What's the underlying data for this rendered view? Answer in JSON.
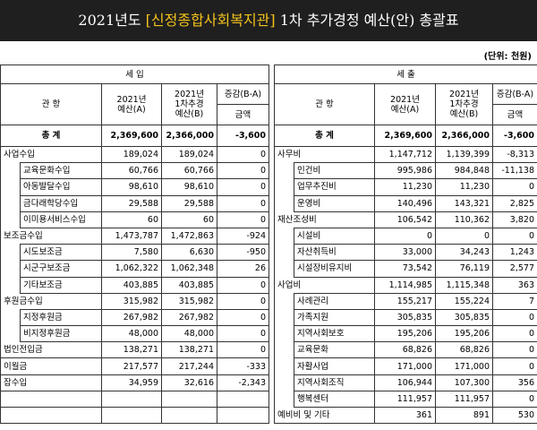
{
  "header": {
    "title_parts": [
      "2021년도 ",
      "[신정종합사회복지관]",
      " 1차 추가경정 예산(안) 총괄표"
    ],
    "unit": "(단위: 천원)"
  },
  "table": {
    "sides": [
      {
        "heading": "세 입",
        "col_name": "관 항",
        "col_a": [
          "2021년",
          "예산(A)"
        ],
        "col_b": [
          "2021년",
          "1차추경",
          "예산(B)"
        ],
        "col_diff": "증감(B-A)",
        "col_diff_sub": "금액",
        "total": [
          "총 계",
          "2,369,600",
          "2,366,000",
          "-3,600"
        ],
        "groups": [
          {
            "row": [
              "사업수입",
              "189,024",
              "189,024",
              "0"
            ],
            "items": [
              [
                "교육문화수입",
                "60,766",
                "60,766",
                "0"
              ],
              [
                "아동발달수입",
                "98,610",
                "98,610",
                "0"
              ],
              [
                "금다래학당수입",
                "29,588",
                "29,588",
                "0"
              ],
              [
                "이미용서비스수입",
                "60",
                "60",
                "0"
              ]
            ]
          },
          {
            "row": [
              "보조금수입",
              "1,473,787",
              "1,472,863",
              "-924"
            ],
            "items": [
              [
                "시도보조금",
                "7,580",
                "6,630",
                "-950"
              ],
              [
                "시군구보조금",
                "1,062,322",
                "1,062,348",
                "26"
              ],
              [
                "기타보조금",
                "403,885",
                "403,885",
                "0"
              ]
            ]
          },
          {
            "row": [
              "후원금수입",
              "315,982",
              "315,982",
              "0"
            ],
            "items": [
              [
                "지정후원금",
                "267,982",
                "267,982",
                "0"
              ],
              [
                "비지정후원금",
                "48,000",
                "48,000",
                "0"
              ]
            ]
          },
          {
            "row": [
              "법인전입금",
              "138,271",
              "138,271",
              "0"
            ]
          },
          {
            "row": [
              "이월금",
              "217,577",
              "217,244",
              "-333"
            ]
          },
          {
            "row": [
              "잡수입",
              "34,959",
              "32,616",
              "-2,343"
            ]
          }
        ]
      },
      {
        "heading": "세 출",
        "col_name": "관 항",
        "col_a": [
          "2021년",
          "예산(A)"
        ],
        "col_b": [
          "2021년",
          "1차추경",
          "예산(B)"
        ],
        "col_diff": "증감(B-A)",
        "col_diff_sub": "금액",
        "total": [
          "총 계",
          "2,369,600",
          "2,366,000",
          "-3,600"
        ],
        "groups": [
          {
            "row": [
              "사무비",
              "1,147,712",
              "1,139,399",
              "-8,313"
            ],
            "items": [
              [
                "인건비",
                "995,986",
                "984,848",
                "-11,138"
              ],
              [
                "업무추진비",
                "11,230",
                "11,230",
                "0"
              ],
              [
                "운영비",
                "140,496",
                "143,321",
                "2,825"
              ]
            ]
          },
          {
            "row": [
              "재산조성비",
              "106,542",
              "110,362",
              "3,820"
            ],
            "items": [
              [
                "시설비",
                "0",
                "0",
                "0"
              ],
              [
                "자산취득비",
                "33,000",
                "34,243",
                "1,243"
              ],
              [
                "시설장비유지비",
                "73,542",
                "76,119",
                "2,577"
              ]
            ]
          },
          {
            "row": [
              "사업비",
              "1,114,985",
              "1,115,348",
              "363"
            ],
            "items": [
              [
                "사례관리",
                "155,217",
                "155,224",
                "7"
              ],
              [
                "가족지원",
                "305,835",
                "305,835",
                "0"
              ],
              [
                "지역사회보호",
                "195,206",
                "195,206",
                "0"
              ],
              [
                "교육문화",
                "68,826",
                "68,826",
                "0"
              ],
              [
                "자활사업",
                "171,000",
                "171,000",
                "0"
              ],
              [
                "지역사회조직",
                "106,944",
                "107,300",
                "356"
              ],
              [
                "행복센터",
                "111,957",
                "111,957",
                "0"
              ]
            ]
          },
          {
            "row": [
              "예비비 및 기타",
              "361",
              "891",
              "530"
            ]
          }
        ]
      }
    ]
  }
}
